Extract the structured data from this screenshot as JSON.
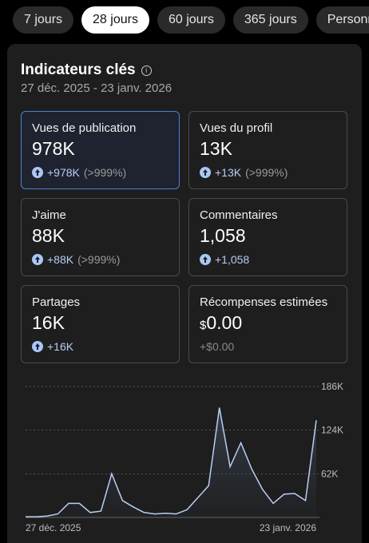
{
  "tabs": [
    "7 jours",
    "28 jours",
    "60 jours",
    "365 jours",
    "Personn"
  ],
  "header": {
    "title": "Indicateurs clés",
    "range": "27 déc. 2025 - 23 janv. 2026"
  },
  "cards": [
    {
      "title": "Vues de publication",
      "value": "978K",
      "change": "+978K",
      "change_pct": "(>999%)"
    },
    {
      "title": "Vues du profil",
      "value": "13K",
      "change": "+13K",
      "change_pct": "(>999%)"
    },
    {
      "title": "J'aime",
      "value": "88K",
      "change": "+88K",
      "change_pct": "(>999%)"
    },
    {
      "title": "Commentaires",
      "value": "1,058",
      "change": "+1,058"
    },
    {
      "title": "Partages",
      "value": "16K",
      "change": "+16K"
    },
    {
      "title": "Récompenses estimées",
      "value_currency": "$",
      "value": "0.00",
      "change": "+$0.00"
    }
  ],
  "chart": {
    "type": "line",
    "categories": [
      "27 déc. 2025",
      null,
      null,
      null,
      null,
      null,
      null,
      null,
      null,
      null,
      null,
      null,
      null,
      null,
      null,
      null,
      null,
      null,
      null,
      null,
      null,
      null,
      null,
      null,
      null,
      null,
      null,
      "23 janv. 2026"
    ],
    "values": [
      1000,
      1000,
      2000,
      5000,
      20000,
      20000,
      7000,
      9000,
      62000,
      24000,
      15000,
      7000,
      5000,
      6000,
      5000,
      11000,
      28000,
      45000,
      156000,
      72000,
      106000,
      69000,
      40000,
      20000,
      33000,
      34000,
      24000,
      138000
    ],
    "ylim": [
      0,
      186000
    ],
    "yticks": [
      {
        "value": 62000,
        "label": "62K"
      },
      {
        "value": 124000,
        "label": "124K"
      },
      {
        "value": 186000,
        "label": "186K"
      }
    ],
    "color": "#b9cff5"
  }
}
